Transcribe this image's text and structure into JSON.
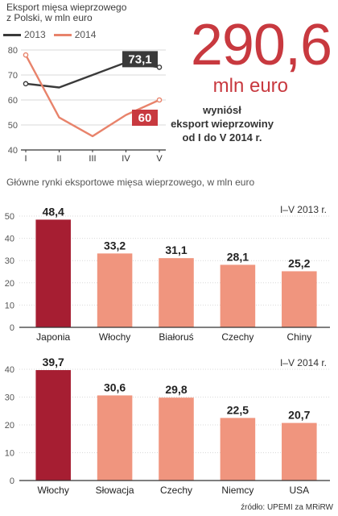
{
  "header": {
    "line_title_1": "Eksport mięsa wieprzowego",
    "line_title_2": "z Polski, w mln euro"
  },
  "highlight": {
    "value": "290,6",
    "unit": "mln euro",
    "caption_1": "wyniósł",
    "caption_2": "eksport wieprzowiny",
    "caption_3": "od I do V 2014 r."
  },
  "bars_title": "Główne rynki eksportowe mięsa wieprzowego, w mln euro",
  "footer": "źródło: UPEMI za MRiRW",
  "colors": {
    "series_2013": "#3a3a3a",
    "series_2014": "#e8836b",
    "highlight_red": "#c8393f",
    "bar_dark": "#a61e32",
    "bar_light": "#f0957e",
    "grid": "#cfcfcf"
  },
  "chart_data": [
    {
      "type": "line",
      "categories": [
        "I",
        "II",
        "III",
        "IV",
        "V"
      ],
      "ylim": [
        40,
        80
      ],
      "yticks": [
        40,
        50,
        60,
        70,
        80
      ],
      "series": [
        {
          "name": "2013",
          "values": [
            66.5,
            65,
            70,
            75,
            73.1
          ],
          "end_label": "73,1",
          "color": "#3a3a3a"
        },
        {
          "name": "2014",
          "values": [
            78,
            53,
            45.5,
            54,
            60
          ],
          "end_label": "60",
          "color": "#e8836b"
        }
      ]
    },
    {
      "type": "bar",
      "period_label": "I–V 2013 r.",
      "categories": [
        "Japonia",
        "Włochy",
        "Białoruś",
        "Czechy",
        "Chiny"
      ],
      "values": [
        48.4,
        33.2,
        31.1,
        28.1,
        25.2
      ],
      "value_labels": [
        "48,4",
        "33,2",
        "31,1",
        "28,1",
        "25,2"
      ],
      "ylim": [
        0,
        50
      ],
      "yticks": [
        0,
        10,
        20,
        30,
        40,
        50
      ]
    },
    {
      "type": "bar",
      "period_label": "I–V 2014 r.",
      "categories": [
        "Włochy",
        "Słowacja",
        "Czechy",
        "Niemcy",
        "USA"
      ],
      "values": [
        39.7,
        30.6,
        29.8,
        22.5,
        20.7
      ],
      "value_labels": [
        "39,7",
        "30,6",
        "29,8",
        "22,5",
        "20,7"
      ],
      "ylim": [
        0,
        40
      ],
      "yticks": [
        0,
        10,
        20,
        30,
        40
      ]
    }
  ]
}
